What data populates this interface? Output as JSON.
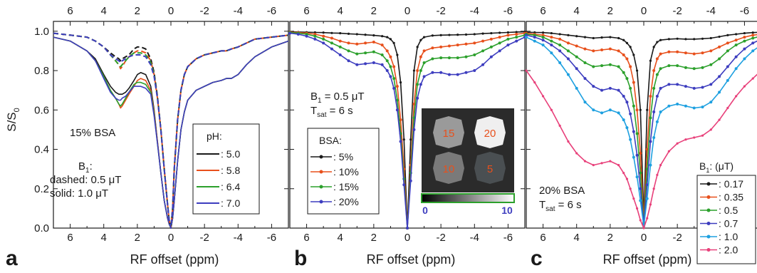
{
  "figure": {
    "ylabel": "S/S0",
    "xlabel": "RF offset (ppm)",
    "x_ticks": [
      6,
      4,
      2,
      0,
      -2,
      -4,
      -6
    ],
    "x_tick_labels": [
      "6",
      "4",
      "2",
      "0",
      "-2",
      "-4",
      "-6"
    ],
    "y_ticks": [
      0.0,
      0.2,
      0.4,
      0.6,
      0.8,
      1.0
    ],
    "y_tick_labels": [
      "0.0",
      "0.2",
      "0.4",
      "0.6",
      "0.8",
      "1.0"
    ]
  },
  "chart_data": [
    {
      "panel": "a",
      "type": "line",
      "xlabel": "RF offset (ppm)",
      "ylabel": "S/S0",
      "xlim": [
        7,
        -7
      ],
      "ylim": [
        0,
        1.05
      ],
      "x_reversed": true,
      "annotations": {
        "sample": "15% BSA",
        "b1_title": "B1:",
        "dashed": "dashed: 0.5 μT",
        "solid": "solid: 1.0 μT"
      },
      "legend": {
        "title": "pH:",
        "position": "center-right"
      },
      "x": [
        7,
        6,
        5,
        4.5,
        4,
        3.6,
        3.3,
        3.1,
        3,
        2.9,
        2.7,
        2.5,
        2.2,
        2,
        1.8,
        1.5,
        1.2,
        1,
        0.8,
        0.6,
        0.4,
        0.2,
        0.1,
        0,
        -0.1,
        -0.2,
        -0.4,
        -0.6,
        -0.8,
        -1,
        -1.5,
        -2,
        -2.5,
        -3,
        -3.3,
        -3.6,
        -4,
        -4.5,
        -5,
        -6,
        -7
      ],
      "series": [
        {
          "name": "5.0",
          "style": "solid",
          "color": "#1a1a1a",
          "values": [
            0.97,
            0.95,
            0.9,
            0.86,
            0.78,
            0.72,
            0.69,
            0.68,
            0.68,
            0.68,
            0.69,
            0.71,
            0.75,
            0.78,
            0.79,
            0.78,
            0.72,
            0.6,
            0.44,
            0.28,
            0.14,
            0.05,
            0.02,
            0.0,
            0.05,
            0.14,
            0.34,
            0.5,
            0.59,
            0.65,
            0.7,
            0.72,
            0.74,
            0.75,
            0.76,
            0.76,
            0.78,
            0.83,
            0.87,
            0.92,
            0.95
          ]
        },
        {
          "name": "5.8",
          "style": "solid",
          "color": "#e8501c",
          "values": [
            0.97,
            0.95,
            0.9,
            0.85,
            0.77,
            0.7,
            0.66,
            0.63,
            0.61,
            0.62,
            0.65,
            0.68,
            0.72,
            0.75,
            0.76,
            0.75,
            0.7,
            0.59,
            0.44,
            0.28,
            0.14,
            0.05,
            0.02,
            0.0,
            0.05,
            0.14,
            0.34,
            0.5,
            0.59,
            0.65,
            0.7,
            0.72,
            0.74,
            0.75,
            0.76,
            0.76,
            0.78,
            0.83,
            0.87,
            0.92,
            0.95
          ]
        },
        {
          "name": "6.4",
          "style": "solid",
          "color": "#2ca02c",
          "values": [
            0.97,
            0.95,
            0.9,
            0.85,
            0.77,
            0.7,
            0.66,
            0.63,
            0.62,
            0.63,
            0.66,
            0.69,
            0.73,
            0.74,
            0.74,
            0.73,
            0.69,
            0.58,
            0.43,
            0.28,
            0.14,
            0.05,
            0.02,
            0.0,
            0.05,
            0.14,
            0.34,
            0.5,
            0.59,
            0.65,
            0.7,
            0.72,
            0.74,
            0.75,
            0.76,
            0.76,
            0.78,
            0.83,
            0.87,
            0.92,
            0.95
          ]
        },
        {
          "name": "7.0",
          "style": "solid",
          "color": "#3d3dbf",
          "values": [
            0.97,
            0.95,
            0.9,
            0.85,
            0.76,
            0.69,
            0.66,
            0.65,
            0.65,
            0.66,
            0.67,
            0.69,
            0.72,
            0.72,
            0.72,
            0.71,
            0.68,
            0.57,
            0.43,
            0.28,
            0.14,
            0.05,
            0.02,
            0.0,
            0.05,
            0.14,
            0.34,
            0.5,
            0.59,
            0.65,
            0.7,
            0.72,
            0.74,
            0.75,
            0.76,
            0.76,
            0.78,
            0.83,
            0.87,
            0.92,
            0.95
          ]
        },
        {
          "name": "5.0",
          "style": "dashed",
          "color": "#1a1a1a",
          "values": [
            0.99,
            0.98,
            0.97,
            0.95,
            0.92,
            0.89,
            0.87,
            0.86,
            0.85,
            0.86,
            0.87,
            0.88,
            0.91,
            0.92,
            0.92,
            0.91,
            0.86,
            0.79,
            0.67,
            0.5,
            0.3,
            0.12,
            0.04,
            0.0,
            0.1,
            0.3,
            0.55,
            0.7,
            0.78,
            0.82,
            0.86,
            0.88,
            0.89,
            0.9,
            0.9,
            0.91,
            0.92,
            0.94,
            0.96,
            0.97,
            0.98
          ]
        },
        {
          "name": "5.8",
          "style": "dashed",
          "color": "#e8501c",
          "values": [
            0.99,
            0.98,
            0.97,
            0.95,
            0.92,
            0.88,
            0.85,
            0.83,
            0.81,
            0.82,
            0.85,
            0.87,
            0.89,
            0.9,
            0.9,
            0.89,
            0.85,
            0.78,
            0.66,
            0.5,
            0.3,
            0.12,
            0.04,
            0.0,
            0.1,
            0.3,
            0.55,
            0.7,
            0.78,
            0.82,
            0.86,
            0.88,
            0.89,
            0.9,
            0.9,
            0.91,
            0.92,
            0.94,
            0.96,
            0.97,
            0.98
          ]
        },
        {
          "name": "6.4",
          "style": "dashed",
          "color": "#2ca02c",
          "values": [
            0.99,
            0.98,
            0.97,
            0.95,
            0.92,
            0.88,
            0.85,
            0.83,
            0.82,
            0.83,
            0.85,
            0.87,
            0.89,
            0.89,
            0.89,
            0.88,
            0.84,
            0.78,
            0.66,
            0.5,
            0.3,
            0.12,
            0.04,
            0.0,
            0.1,
            0.3,
            0.55,
            0.7,
            0.78,
            0.82,
            0.86,
            0.88,
            0.89,
            0.9,
            0.9,
            0.91,
            0.92,
            0.94,
            0.96,
            0.97,
            0.98
          ]
        },
        {
          "name": "7.0",
          "style": "dashed",
          "color": "#3d3dbf",
          "values": [
            0.99,
            0.98,
            0.97,
            0.95,
            0.92,
            0.88,
            0.86,
            0.85,
            0.84,
            0.85,
            0.86,
            0.87,
            0.88,
            0.88,
            0.88,
            0.87,
            0.83,
            0.77,
            0.66,
            0.5,
            0.3,
            0.12,
            0.04,
            0.0,
            0.1,
            0.3,
            0.55,
            0.7,
            0.78,
            0.82,
            0.86,
            0.88,
            0.89,
            0.9,
            0.9,
            0.91,
            0.92,
            0.94,
            0.96,
            0.97,
            0.98
          ]
        }
      ]
    },
    {
      "panel": "b",
      "type": "line",
      "xlabel": "RF offset (ppm)",
      "ylabel": "S/S0",
      "xlim": [
        7,
        -7
      ],
      "ylim": [
        0,
        1.05
      ],
      "x_reversed": true,
      "annotations": {
        "b1": "B1 = 0.5 μT",
        "tsat": "Tsat = 6 s"
      },
      "legend": {
        "title": "BSA:",
        "position": "bottom-left"
      },
      "inset": {
        "type": "heatmap-image",
        "position": "bottom-right",
        "vials": [
          "15",
          "20",
          "10",
          "5"
        ],
        "vial_brightness": [
          0.72,
          0.98,
          0.55,
          0.32
        ],
        "colorbar_min": "0",
        "colorbar_max": "10"
      },
      "x": [
        7,
        6.5,
        6,
        5.5,
        5,
        4.5,
        4,
        3.5,
        3,
        2.5,
        2,
        1.5,
        1.2,
        1,
        0.8,
        0.6,
        0.4,
        0.2,
        0,
        -0.2,
        -0.4,
        -0.6,
        -0.8,
        -1,
        -1.5,
        -2,
        -2.5,
        -3,
        -3.5,
        -4,
        -4.5,
        -5,
        -5.5,
        -6,
        -6.5,
        -7
      ],
      "series": [
        {
          "name": "5%",
          "color": "#1a1a1a",
          "marker": "dot",
          "values": [
            0.997,
            0.996,
            0.995,
            0.994,
            0.993,
            0.991,
            0.99,
            0.987,
            0.985,
            0.982,
            0.979,
            0.975,
            0.97,
            0.96,
            0.94,
            0.88,
            0.74,
            0.45,
            0.0,
            0.45,
            0.8,
            0.92,
            0.955,
            0.97,
            0.978,
            0.98,
            0.981,
            0.982,
            0.983,
            0.985,
            0.988,
            0.99,
            0.992,
            0.994,
            0.996,
            0.997
          ]
        },
        {
          "name": "10%",
          "color": "#e8501c",
          "marker": "square",
          "values": [
            0.995,
            0.993,
            0.99,
            0.985,
            0.975,
            0.965,
            0.95,
            0.94,
            0.935,
            0.94,
            0.945,
            0.93,
            0.9,
            0.87,
            0.82,
            0.72,
            0.55,
            0.3,
            0.0,
            0.32,
            0.63,
            0.8,
            0.87,
            0.9,
            0.915,
            0.92,
            0.925,
            0.93,
            0.935,
            0.94,
            0.95,
            0.96,
            0.97,
            0.98,
            0.985,
            0.99
          ]
        },
        {
          "name": "15%",
          "color": "#2ca02c",
          "marker": "triangle",
          "values": [
            0.993,
            0.99,
            0.985,
            0.975,
            0.96,
            0.94,
            0.92,
            0.9,
            0.885,
            0.89,
            0.895,
            0.88,
            0.85,
            0.82,
            0.76,
            0.65,
            0.48,
            0.25,
            0.0,
            0.28,
            0.56,
            0.73,
            0.8,
            0.84,
            0.86,
            0.865,
            0.865,
            0.865,
            0.87,
            0.88,
            0.9,
            0.92,
            0.94,
            0.96,
            0.97,
            0.98
          ]
        },
        {
          "name": "20%",
          "color": "#3d3dbf",
          "marker": "triangle-down",
          "values": [
            0.99,
            0.985,
            0.975,
            0.96,
            0.94,
            0.91,
            0.88,
            0.85,
            0.83,
            0.835,
            0.84,
            0.83,
            0.8,
            0.77,
            0.71,
            0.6,
            0.44,
            0.22,
            0.0,
            0.24,
            0.5,
            0.66,
            0.73,
            0.77,
            0.79,
            0.79,
            0.78,
            0.78,
            0.79,
            0.8,
            0.83,
            0.87,
            0.9,
            0.93,
            0.95,
            0.97
          ]
        }
      ]
    },
    {
      "panel": "c",
      "type": "line",
      "xlabel": "RF offset (ppm)",
      "ylabel": "S/S0",
      "xlim": [
        7,
        -7
      ],
      "ylim": [
        0,
        1.05
      ],
      "x_reversed": true,
      "annotations": {
        "sample": "20% BSA",
        "tsat": "Tsat = 6 s"
      },
      "legend": {
        "title": "B1: (μT)",
        "position": "bottom-right"
      },
      "x": [
        7,
        6.5,
        6,
        5.5,
        5,
        4.5,
        4,
        3.5,
        3,
        2.5,
        2,
        1.5,
        1.2,
        1,
        0.8,
        0.6,
        0.4,
        0.2,
        0,
        -0.2,
        -0.4,
        -0.6,
        -0.8,
        -1,
        -1.5,
        -2,
        -2.5,
        -3,
        -3.5,
        -4,
        -4.5,
        -5,
        -5.5,
        -6,
        -6.5,
        -7
      ],
      "series": [
        {
          "name": "0.17",
          "color": "#1a1a1a",
          "marker": "dot",
          "values": [
            0.995,
            0.994,
            0.993,
            0.99,
            0.985,
            0.98,
            0.975,
            0.97,
            0.965,
            0.968,
            0.97,
            0.965,
            0.955,
            0.94,
            0.92,
            0.88,
            0.8,
            0.6,
            0.05,
            0.6,
            0.85,
            0.92,
            0.945,
            0.955,
            0.96,
            0.962,
            0.96,
            0.96,
            0.962,
            0.965,
            0.972,
            0.98,
            0.985,
            0.99,
            0.993,
            0.995
          ]
        },
        {
          "name": "0.35",
          "color": "#e8501c",
          "marker": "square",
          "values": [
            0.99,
            0.985,
            0.98,
            0.97,
            0.96,
            0.94,
            0.925,
            0.91,
            0.9,
            0.905,
            0.91,
            0.9,
            0.88,
            0.86,
            0.82,
            0.74,
            0.6,
            0.38,
            0.03,
            0.4,
            0.67,
            0.8,
            0.86,
            0.885,
            0.895,
            0.895,
            0.89,
            0.885,
            0.89,
            0.9,
            0.92,
            0.94,
            0.955,
            0.97,
            0.98,
            0.985
          ]
        },
        {
          "name": "0.5",
          "color": "#2ca02c",
          "marker": "triangle",
          "values": [
            0.985,
            0.98,
            0.97,
            0.95,
            0.93,
            0.9,
            0.87,
            0.84,
            0.82,
            0.825,
            0.83,
            0.82,
            0.79,
            0.76,
            0.71,
            0.62,
            0.48,
            0.28,
            0.02,
            0.3,
            0.56,
            0.71,
            0.78,
            0.81,
            0.825,
            0.825,
            0.815,
            0.81,
            0.815,
            0.83,
            0.86,
            0.9,
            0.93,
            0.95,
            0.965,
            0.975
          ]
        },
        {
          "name": "0.7",
          "color": "#3d3dbf",
          "marker": "triangle-down",
          "values": [
            0.98,
            0.97,
            0.955,
            0.93,
            0.9,
            0.86,
            0.81,
            0.76,
            0.72,
            0.7,
            0.71,
            0.7,
            0.67,
            0.64,
            0.58,
            0.49,
            0.37,
            0.2,
            0.02,
            0.22,
            0.44,
            0.59,
            0.67,
            0.71,
            0.73,
            0.73,
            0.72,
            0.71,
            0.715,
            0.73,
            0.77,
            0.82,
            0.87,
            0.91,
            0.94,
            0.96
          ]
        },
        {
          "name": "1.0",
          "color": "#1ea0e0",
          "marker": "diamond",
          "values": [
            0.97,
            0.95,
            0.93,
            0.89,
            0.84,
            0.78,
            0.71,
            0.64,
            0.6,
            0.585,
            0.6,
            0.585,
            0.55,
            0.51,
            0.45,
            0.36,
            0.26,
            0.14,
            0.01,
            0.15,
            0.32,
            0.46,
            0.54,
            0.59,
            0.62,
            0.63,
            0.62,
            0.61,
            0.615,
            0.64,
            0.69,
            0.75,
            0.81,
            0.86,
            0.9,
            0.93
          ]
        },
        {
          "name": "2.0",
          "color": "#e8407a",
          "marker": "dot",
          "values": [
            0.8,
            0.74,
            0.67,
            0.6,
            0.52,
            0.44,
            0.38,
            0.34,
            0.32,
            0.33,
            0.34,
            0.32,
            0.28,
            0.25,
            0.2,
            0.15,
            0.1,
            0.04,
            0.0,
            0.05,
            0.12,
            0.2,
            0.27,
            0.32,
            0.39,
            0.43,
            0.45,
            0.46,
            0.47,
            0.5,
            0.55,
            0.61,
            0.67,
            0.72,
            0.76,
            0.8
          ]
        }
      ]
    }
  ],
  "colors": {
    "axis": "#1a1a1a",
    "inset_background": "#2b2b2b",
    "inset_label": "#e8501c",
    "colorbar_border": "#2ca02c",
    "colorbar_label": "#3d3dbf"
  }
}
